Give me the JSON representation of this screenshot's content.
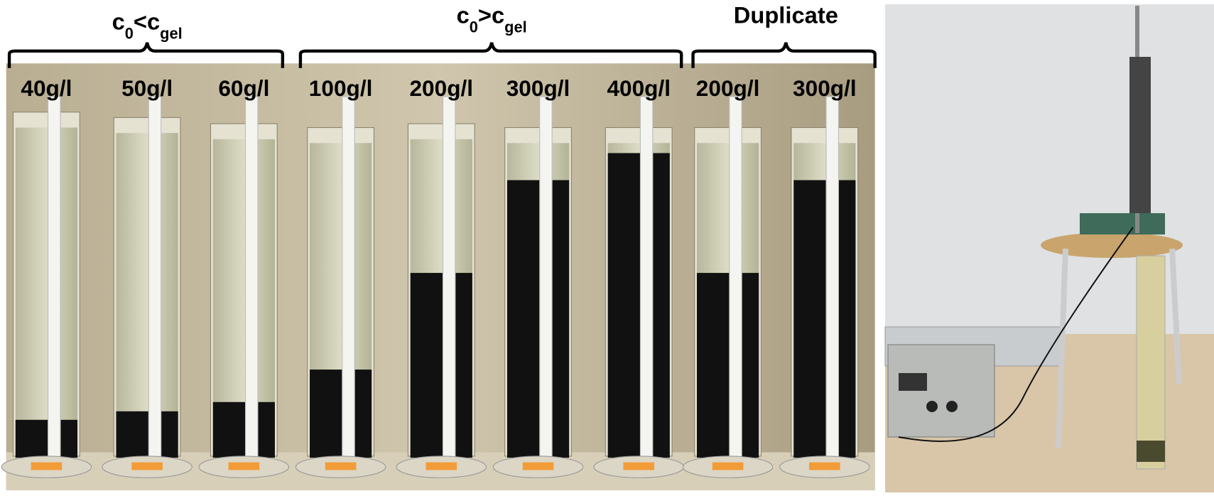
{
  "groups": [
    {
      "parts": [
        {
          "text": "c"
        },
        {
          "text": "0",
          "sub": true
        },
        {
          "text": "<c"
        },
        {
          "text": "gel",
          "sub": true
        }
      ]
    },
    {
      "parts": [
        {
          "text": "c"
        },
        {
          "text": "0",
          "sub": true
        },
        {
          "text": ">c"
        },
        {
          "text": "gel",
          "sub": true
        }
      ]
    },
    {
      "parts": [
        {
          "text": "Duplicate"
        }
      ]
    }
  ],
  "cylinders": [
    {
      "label": "40g/l"
    },
    {
      "label": "50g/l"
    },
    {
      "label": "60g/l"
    },
    {
      "label": "100g/l"
    },
    {
      "label": "200g/l"
    },
    {
      "label": "300g/l"
    },
    {
      "label": "400g/l"
    },
    {
      "label": "200g/l"
    },
    {
      "label": "300g/l"
    }
  ]
}
